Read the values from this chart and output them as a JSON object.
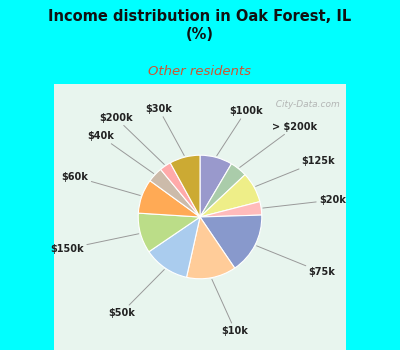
{
  "title": "Income distribution in Oak Forest, IL\n(%)",
  "subtitle": "Other residents",
  "title_color": "#111111",
  "subtitle_color": "#cc5533",
  "bg_outer": "#00FFFF",
  "labels": [
    "$100k",
    "> $200k",
    "$125k",
    "$20k",
    "$75k",
    "$10k",
    "$50k",
    "$150k",
    "$60k",
    "$40k",
    "$200k",
    "$30k"
  ],
  "values": [
    8.5,
    4.5,
    8.0,
    3.5,
    16.0,
    13.0,
    12.0,
    10.5,
    9.0,
    4.0,
    3.0,
    8.0
  ],
  "colors": [
    "#9999cc",
    "#aaccaa",
    "#eeee88",
    "#ffbbbb",
    "#8899cc",
    "#ffcc99",
    "#aaccee",
    "#bbdd88",
    "#ffaa55",
    "#ccbbaa",
    "#ffaaaa",
    "#ccaa33"
  ],
  "watermark": "  City-Data.com",
  "figsize": [
    4.0,
    3.5
  ],
  "dpi": 100
}
